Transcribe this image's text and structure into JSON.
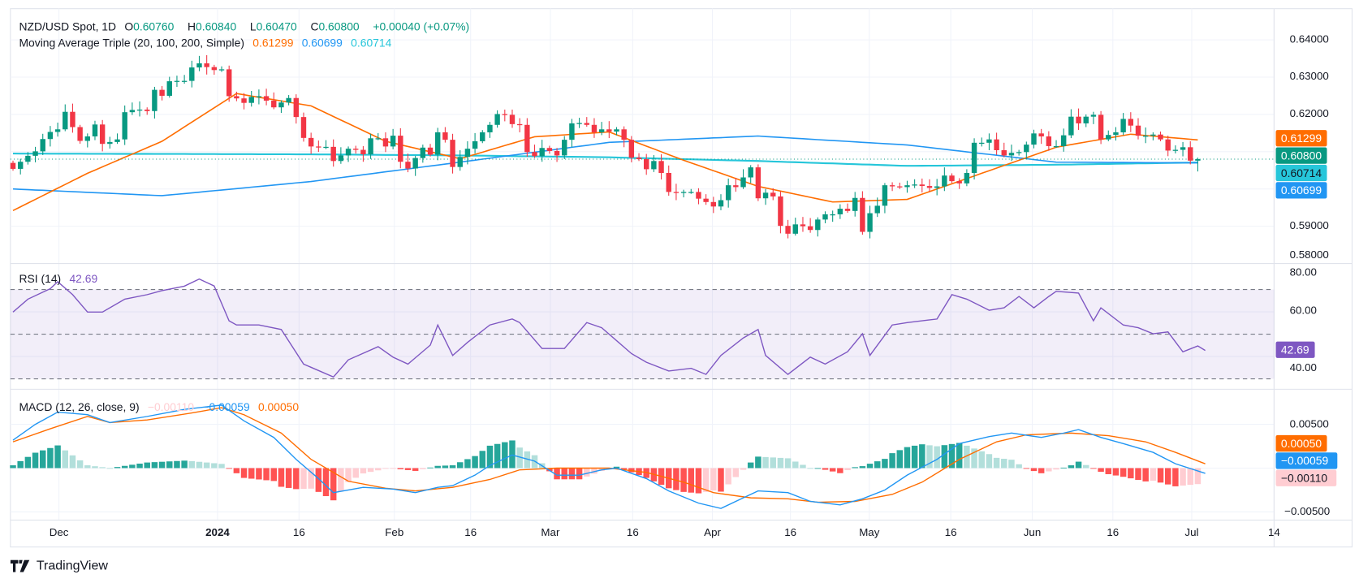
{
  "header": {
    "symbol": "NZD/USD Spot, 1D",
    "open_label": "O",
    "open": "0.60760",
    "high_label": "H",
    "high": "0.60840",
    "low_label": "L",
    "low": "0.60470",
    "close_label": "C",
    "close": "0.60800",
    "change": "+0.00040 (+0.07%)"
  },
  "ma_legend": {
    "title": "Moving Average Triple (20, 100, 200, Simple)",
    "ma20": "0.61299",
    "ma100": "0.60699",
    "ma200": "0.60714"
  },
  "rsi_legend": {
    "title": "RSI (14)",
    "value": "42.69"
  },
  "macd_legend": {
    "title": "MACD (12, 26, close, 9)",
    "hist": "−0.00110",
    "macd": "−0.00059",
    "signal": "0.00050"
  },
  "price_axis": [
    "0.64000",
    "0.63000",
    "0.62000",
    "0.59000",
    "0.58000"
  ],
  "price_tags": {
    "ma20": "0.61299",
    "last": "0.60800",
    "ma200": "0.60714",
    "ma100": "0.60699"
  },
  "rsi_axis": [
    "80.00",
    "60.00",
    "40.00"
  ],
  "rsi_tag": "42.69",
  "macd_axis": [
    "0.00500",
    "−0.00500"
  ],
  "macd_tags": {
    "signal": "0.00050",
    "macd": "−0.00059",
    "hist": "−0.00110"
  },
  "time_axis": [
    "Dec",
    "2024",
    "16",
    "Feb",
    "16",
    "Mar",
    "16",
    "Apr",
    "16",
    "May",
    "16",
    "Jun",
    "16",
    "Jul",
    "14"
  ],
  "branding": "TradingView",
  "colors": {
    "up": "#089981",
    "down": "#f23645",
    "ma20": "#ff6d00",
    "ma100": "#2196f3",
    "ma200": "#26c6da",
    "rsi": "#7e57c2",
    "macd": "#2196f3",
    "signal": "#ff6d00"
  },
  "chart_data": {
    "type": "candlestick",
    "title": "NZD/USD Spot, 1D",
    "ylim": [
      0.58,
      0.64
    ],
    "rsi_ylim": [
      30,
      80
    ],
    "rsi_bands": [
      70,
      50,
      30
    ],
    "macd_ylim": [
      -0.005,
      0.005
    ],
    "first_open": 0.607,
    "last_bar": {
      "open": 0.6076,
      "high": 0.6084,
      "low": 0.6047,
      "close": 0.608
    },
    "closes": [
      0.6054,
      0.6073,
      0.6089,
      0.6101,
      0.6134,
      0.6153,
      0.616,
      0.6207,
      0.6166,
      0.6129,
      0.6141,
      0.6173,
      0.6121,
      0.6126,
      0.6133,
      0.6206,
      0.6212,
      0.6213,
      0.6209,
      0.6266,
      0.625,
      0.6289,
      0.629,
      0.629,
      0.6326,
      0.6337,
      0.6327,
      0.6319,
      0.6321,
      0.6249,
      0.6243,
      0.6231,
      0.6247,
      0.6249,
      0.6237,
      0.6219,
      0.6232,
      0.6244,
      0.6193,
      0.6137,
      0.6114,
      0.6112,
      0.6113,
      0.6075,
      0.609,
      0.6108,
      0.6105,
      0.6093,
      0.6136,
      0.6136,
      0.6114,
      0.6143,
      0.6073,
      0.6055,
      0.6083,
      0.6111,
      0.6092,
      0.6152,
      0.6132,
      0.6059,
      0.6086,
      0.6108,
      0.6128,
      0.6152,
      0.6172,
      0.6201,
      0.6199,
      0.6174,
      0.6172,
      0.6099,
      0.6088,
      0.611,
      0.6102,
      0.609,
      0.6132,
      0.6176,
      0.6177,
      0.6172,
      0.6152,
      0.616,
      0.6154,
      0.616,
      0.6132,
      0.6084,
      0.608,
      0.6053,
      0.6075,
      0.6043,
      0.5992,
      0.599,
      0.5992,
      0.5992,
      0.5974,
      0.5965,
      0.5953,
      0.597,
      0.601,
      0.6005,
      0.6031,
      0.6058,
      0.5975,
      0.599,
      0.598,
      0.5901,
      0.588,
      0.5905,
      0.59,
      0.589,
      0.5918,
      0.5932,
      0.5932,
      0.5947,
      0.5941,
      0.5976,
      0.5885,
      0.5935,
      0.5955,
      0.601,
      0.6007,
      0.6005,
      0.601,
      0.6012,
      0.6008,
      0.6003,
      0.6007,
      0.6036,
      0.6021,
      0.6015,
      0.6043,
      0.6124,
      0.6124,
      0.6133,
      0.6104,
      0.609,
      0.6097,
      0.6099,
      0.6119,
      0.6149,
      0.6141,
      0.6115,
      0.6115,
      0.6144,
      0.6194,
      0.6176,
      0.6194,
      0.6199,
      0.6133,
      0.6145,
      0.6152,
      0.6188,
      0.617,
      0.6143,
      0.6143,
      0.6146,
      0.6133,
      0.6103,
      0.6105,
      0.6112,
      0.6076,
      0.608
    ],
    "ma20": [
      [
        0,
        0.5942
      ],
      [
        10,
        0.6042
      ],
      [
        20,
        0.6128
      ],
      [
        30,
        0.6256
      ],
      [
        40,
        0.6223
      ],
      [
        50,
        0.6128
      ],
      [
        60,
        0.6081
      ],
      [
        70,
        0.614
      ],
      [
        80,
        0.6153
      ],
      [
        90,
        0.6077
      ],
      [
        100,
        0.6007
      ],
      [
        110,
        0.5965
      ],
      [
        120,
        0.5972
      ],
      [
        130,
        0.6042
      ],
      [
        140,
        0.6112
      ],
      [
        150,
        0.6147
      ],
      [
        160,
        0.61299
      ]
    ],
    "ma100": [
      [
        0,
        0.6
      ],
      [
        20,
        0.5982
      ],
      [
        40,
        0.602
      ],
      [
        60,
        0.6072
      ],
      [
        80,
        0.6125
      ],
      [
        100,
        0.6142
      ],
      [
        120,
        0.6118
      ],
      [
        140,
        0.6072
      ],
      [
        160,
        0.60699
      ]
    ],
    "ma200": [
      [
        0,
        0.6095
      ],
      [
        20,
        0.6094
      ],
      [
        40,
        0.6093
      ],
      [
        60,
        0.609
      ],
      [
        80,
        0.6085
      ],
      [
        100,
        0.6075
      ],
      [
        120,
        0.6062
      ],
      [
        140,
        0.6065
      ],
      [
        160,
        0.60714
      ]
    ],
    "rsi": [
      [
        0,
        59.9
      ],
      [
        2,
        65.7
      ],
      [
        5,
        70.4
      ],
      [
        6,
        73.5
      ],
      [
        8,
        67.7
      ],
      [
        10,
        59.9
      ],
      [
        12,
        59.9
      ],
      [
        15,
        65.7
      ],
      [
        18,
        67.7
      ],
      [
        20,
        69.5
      ],
      [
        23,
        71.5
      ],
      [
        25,
        74.7
      ],
      [
        27,
        71.6
      ],
      [
        29,
        56.0
      ],
      [
        30,
        54.1
      ],
      [
        33,
        54.1
      ],
      [
        36,
        52.1
      ],
      [
        39,
        36.6
      ],
      [
        43,
        30.8
      ],
      [
        45,
        38.5
      ],
      [
        49,
        44.4
      ],
      [
        51,
        39.7
      ],
      [
        53,
        36.6
      ],
      [
        56,
        45.1
      ],
      [
        57,
        54.1
      ],
      [
        59,
        40.5
      ],
      [
        61,
        46.3
      ],
      [
        64,
        54.1
      ],
      [
        67,
        56.8
      ],
      [
        68,
        55.2
      ],
      [
        71,
        43.6
      ],
      [
        74,
        43.6
      ],
      [
        77,
        55.2
      ],
      [
        79,
        52.9
      ],
      [
        83,
        41.3
      ],
      [
        85,
        37.4
      ],
      [
        88,
        33.5
      ],
      [
        91,
        34.7
      ],
      [
        93,
        32.0
      ],
      [
        95,
        40.5
      ],
      [
        98,
        48.3
      ],
      [
        100,
        52.1
      ],
      [
        101,
        40.5
      ],
      [
        104,
        32.0
      ],
      [
        107,
        39.7
      ],
      [
        109,
        36.6
      ],
      [
        112,
        42.1
      ],
      [
        114,
        50.2
      ],
      [
        115,
        40.5
      ],
      [
        118,
        54.1
      ],
      [
        120,
        55.2
      ],
      [
        124,
        56.8
      ],
      [
        126,
        67.7
      ],
      [
        128,
        65.7
      ],
      [
        131,
        60.7
      ],
      [
        133,
        61.8
      ],
      [
        135,
        66.9
      ],
      [
        137,
        61.8
      ],
      [
        139,
        66.9
      ],
      [
        140,
        69.2
      ],
      [
        143,
        68.4
      ],
      [
        145,
        56.0
      ],
      [
        146,
        61.8
      ],
      [
        149,
        54.1
      ],
      [
        151,
        52.9
      ],
      [
        153,
        50.2
      ],
      [
        155,
        51.0
      ],
      [
        157,
        42.1
      ],
      [
        159,
        44.7
      ],
      [
        160,
        42.69
      ]
    ],
    "macd": [
      [
        0,
        0.0032
      ],
      [
        3,
        0.005
      ],
      [
        6,
        0.0064
      ],
      [
        10,
        0.0061
      ],
      [
        13,
        0.0052
      ],
      [
        18,
        0.0059
      ],
      [
        23,
        0.0067
      ],
      [
        28,
        0.0072
      ],
      [
        31,
        0.0054
      ],
      [
        35,
        0.0035
      ],
      [
        38,
        0.001
      ],
      [
        41,
        -0.0012
      ],
      [
        43,
        -0.0028
      ],
      [
        47,
        -0.0022
      ],
      [
        51,
        -0.0024
      ],
      [
        54,
        -0.0028
      ],
      [
        57,
        -0.0022
      ],
      [
        59,
        -0.002
      ],
      [
        62,
        -0.0008
      ],
      [
        64,
        0.0003
      ],
      [
        67,
        0.0015
      ],
      [
        70,
        0.0008
      ],
      [
        73,
        -0.0008
      ],
      [
        76,
        -0.0008
      ],
      [
        79,
        -0.0002
      ],
      [
        81,
        0.0
      ],
      [
        85,
        -0.0012
      ],
      [
        88,
        -0.0026
      ],
      [
        92,
        -0.004
      ],
      [
        95,
        -0.0046
      ],
      [
        98,
        -0.0034
      ],
      [
        100,
        -0.0026
      ],
      [
        104,
        -0.0028
      ],
      [
        107,
        -0.0038
      ],
      [
        111,
        -0.0042
      ],
      [
        114,
        -0.0035
      ],
      [
        117,
        -0.0025
      ],
      [
        120,
        -0.0008
      ],
      [
        124,
        0.001
      ],
      [
        127,
        0.0028
      ],
      [
        131,
        0.0036
      ],
      [
        134,
        0.004
      ],
      [
        138,
        0.0035
      ],
      [
        141,
        0.004
      ],
      [
        143,
        0.0044
      ],
      [
        146,
        0.0035
      ],
      [
        149,
        0.0028
      ],
      [
        153,
        0.0018
      ],
      [
        156,
        0.0005
      ],
      [
        160,
        -0.00059
      ]
    ],
    "signal": [
      [
        0,
        0.003
      ],
      [
        5,
        0.0045
      ],
      [
        10,
        0.0059
      ],
      [
        13,
        0.0052
      ],
      [
        18,
        0.0055
      ],
      [
        24,
        0.0063
      ],
      [
        28,
        0.0069
      ],
      [
        31,
        0.0061
      ],
      [
        36,
        0.004
      ],
      [
        40,
        0.001
      ],
      [
        45,
        -0.0015
      ],
      [
        50,
        -0.0023
      ],
      [
        54,
        -0.0026
      ],
      [
        59,
        -0.0022
      ],
      [
        64,
        -0.0013
      ],
      [
        68,
        -0.0002
      ],
      [
        73,
        0.0
      ],
      [
        80,
        0.0
      ],
      [
        85,
        -0.0005
      ],
      [
        90,
        -0.0016
      ],
      [
        94,
        -0.0028
      ],
      [
        99,
        -0.0034
      ],
      [
        104,
        -0.0035
      ],
      [
        108,
        -0.0039
      ],
      [
        113,
        -0.0038
      ],
      [
        118,
        -0.003
      ],
      [
        122,
        -0.0016
      ],
      [
        127,
        0.001
      ],
      [
        132,
        0.003
      ],
      [
        136,
        0.0038
      ],
      [
        142,
        0.004
      ],
      [
        147,
        0.0037
      ],
      [
        152,
        0.003
      ],
      [
        156,
        0.0018
      ],
      [
        160,
        0.0005
      ]
    ]
  }
}
